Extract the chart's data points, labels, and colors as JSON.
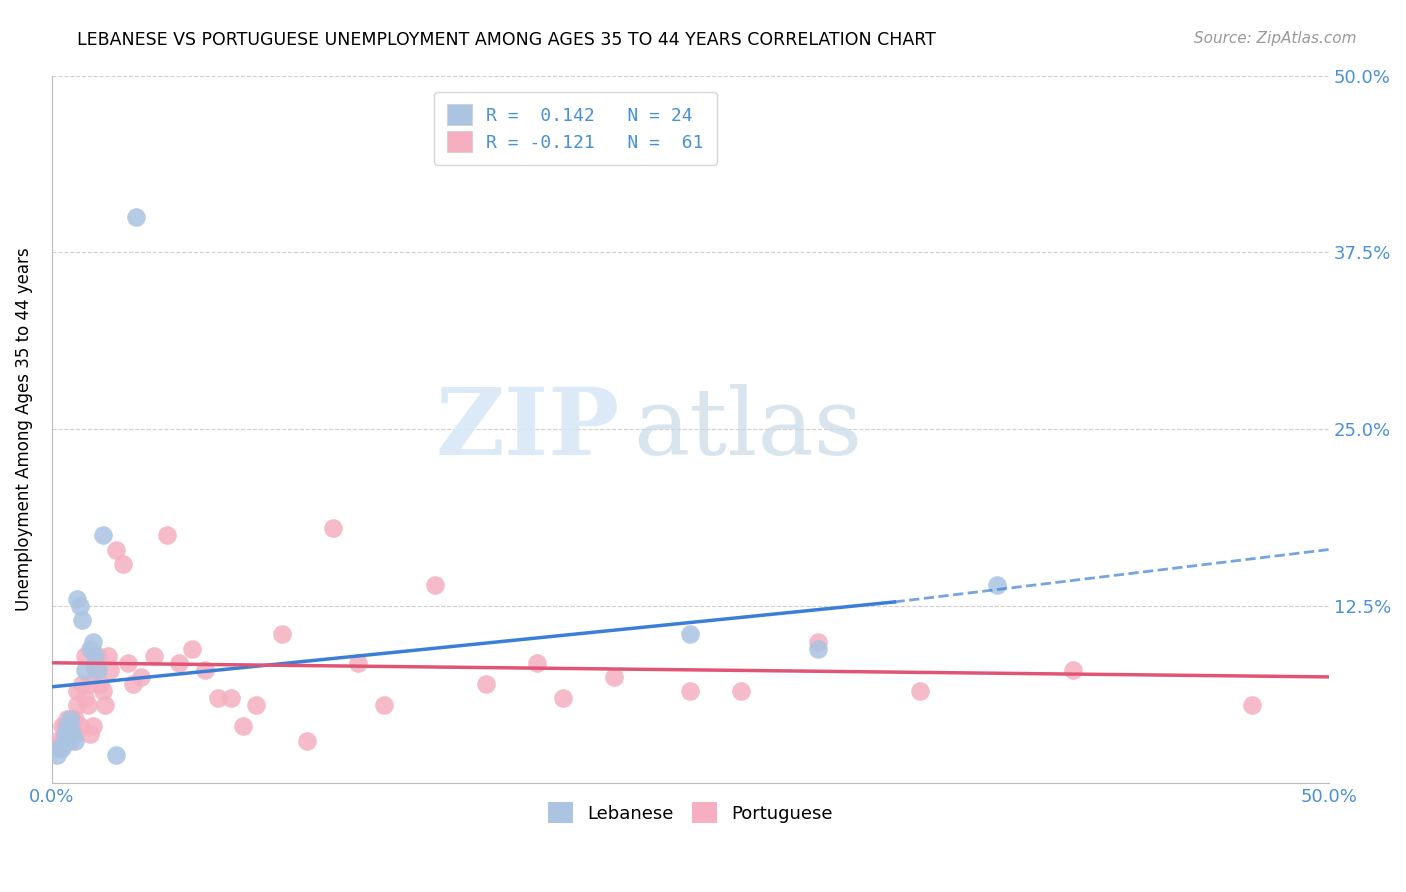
{
  "title": "LEBANESE VS PORTUGUESE UNEMPLOYMENT AMONG AGES 35 TO 44 YEARS CORRELATION CHART",
  "source": "Source: ZipAtlas.com",
  "ylabel": "Unemployment Among Ages 35 to 44 years",
  "xlim": [
    0.0,
    0.5
  ],
  "ylim": [
    0.0,
    0.5
  ],
  "watermark_zip": "ZIP",
  "watermark_atlas": "atlas",
  "legend_line1": "R =  0.142   N = 24",
  "legend_line2": "R = -0.121   N =  61",
  "lebanese_color": "#aac4e2",
  "portuguese_color": "#f5afc0",
  "lebanese_line_color": "#3a7fd5",
  "portuguese_line_color": "#e05575",
  "background_color": "#ffffff",
  "grid_color": "#d0d0d0",
  "lebanese_x": [
    0.002,
    0.003,
    0.004,
    0.005,
    0.005,
    0.006,
    0.007,
    0.007,
    0.008,
    0.009,
    0.01,
    0.011,
    0.012,
    0.013,
    0.015,
    0.016,
    0.017,
    0.018,
    0.02,
    0.025,
    0.033,
    0.25,
    0.3,
    0.37
  ],
  "lebanese_y": [
    0.02,
    0.025,
    0.025,
    0.03,
    0.035,
    0.04,
    0.04,
    0.045,
    0.035,
    0.03,
    0.13,
    0.125,
    0.115,
    0.08,
    0.095,
    0.1,
    0.09,
    0.08,
    0.175,
    0.02,
    0.4,
    0.105,
    0.095,
    0.14
  ],
  "portuguese_x": [
    0.002,
    0.003,
    0.004,
    0.004,
    0.005,
    0.005,
    0.006,
    0.006,
    0.007,
    0.007,
    0.008,
    0.008,
    0.009,
    0.009,
    0.01,
    0.01,
    0.011,
    0.012,
    0.013,
    0.013,
    0.014,
    0.015,
    0.015,
    0.016,
    0.017,
    0.018,
    0.019,
    0.02,
    0.021,
    0.022,
    0.023,
    0.025,
    0.028,
    0.03,
    0.032,
    0.035,
    0.04,
    0.045,
    0.05,
    0.055,
    0.06,
    0.065,
    0.07,
    0.075,
    0.08,
    0.09,
    0.1,
    0.11,
    0.12,
    0.13,
    0.15,
    0.17,
    0.19,
    0.2,
    0.22,
    0.25,
    0.27,
    0.3,
    0.34,
    0.4,
    0.47
  ],
  "portuguese_y": [
    0.03,
    0.025,
    0.03,
    0.04,
    0.035,
    0.04,
    0.04,
    0.045,
    0.03,
    0.04,
    0.04,
    0.045,
    0.035,
    0.045,
    0.055,
    0.065,
    0.04,
    0.07,
    0.06,
    0.09,
    0.055,
    0.035,
    0.07,
    0.04,
    0.08,
    0.09,
    0.07,
    0.065,
    0.055,
    0.09,
    0.08,
    0.165,
    0.155,
    0.085,
    0.07,
    0.075,
    0.09,
    0.175,
    0.085,
    0.095,
    0.08,
    0.06,
    0.06,
    0.04,
    0.055,
    0.105,
    0.03,
    0.18,
    0.085,
    0.055,
    0.14,
    0.07,
    0.085,
    0.06,
    0.075,
    0.065,
    0.065,
    0.1,
    0.065,
    0.08,
    0.055
  ],
  "leb_line_x_start": 0.0,
  "leb_line_x_solid_end": 0.33,
  "leb_line_x_dash_end": 0.5,
  "leb_line_y_start": 0.068,
  "leb_line_y_solid_end": 0.128,
  "leb_line_y_dash_end": 0.165,
  "por_line_x_start": 0.0,
  "por_line_x_end": 0.5,
  "por_line_y_start": 0.085,
  "por_line_y_end": 0.075
}
